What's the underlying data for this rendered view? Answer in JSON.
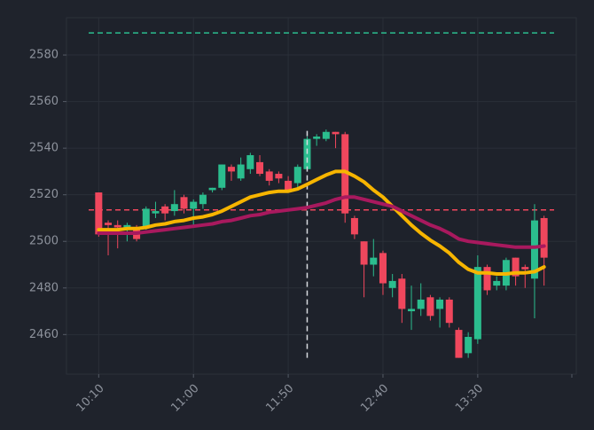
{
  "chart_data": {
    "type": "candlestick",
    "x": [
      "10:10",
      "10:15",
      "10:20",
      "10:25",
      "10:30",
      "10:35",
      "10:40",
      "10:45",
      "10:50",
      "10:55",
      "11:00",
      "11:05",
      "11:10",
      "11:15",
      "11:20",
      "11:25",
      "11:30",
      "11:35",
      "11:40",
      "11:45",
      "11:50",
      "11:55",
      "12:00",
      "12:05",
      "12:10",
      "12:15",
      "12:20",
      "12:25",
      "12:30",
      "12:35",
      "12:40",
      "12:45",
      "12:50",
      "12:55",
      "13:00",
      "13:05",
      "13:10",
      "13:15",
      "13:20",
      "13:25",
      "13:30",
      "13:35",
      "13:40",
      "13:45",
      "13:50",
      "13:55",
      "14:00",
      "14:05"
    ],
    "open": [
      2521,
      2508,
      2507,
      2506,
      2506,
      2506,
      2512,
      2515,
      2513,
      2519,
      2514,
      2516,
      2522,
      2523,
      2532,
      2527,
      2531,
      2534,
      2530,
      2529,
      2526,
      2525,
      2531,
      2544,
      2544,
      2547,
      2546,
      2510,
      2500,
      2490,
      2495,
      2480,
      2484,
      2470,
      2471,
      2476,
      2471,
      2475,
      2462,
      2452,
      2458,
      2489,
      2481,
      2481,
      2493,
      2489,
      2484,
      2510
    ],
    "high": [
      2521,
      2509,
      2509,
      2508,
      2507,
      2515,
      2517,
      2516,
      2522,
      2520,
      2518,
      2521,
      2523,
      2533,
      2533,
      2536,
      2538,
      2537,
      2531,
      2530,
      2528,
      2533,
      2545,
      2546,
      2548,
      2547,
      2547,
      2511,
      2500,
      2501,
      2496,
      2486,
      2486,
      2481,
      2482,
      2477,
      2476,
      2476,
      2463,
      2461,
      2494,
      2490,
      2485,
      2493,
      2493,
      2490,
      2516,
      2511
    ],
    "low": [
      2502,
      2494,
      2497,
      2500,
      2500,
      2505,
      2510,
      2509,
      2511,
      2512,
      2507,
      2514,
      2521,
      2522,
      2526,
      2526,
      2529,
      2528,
      2524,
      2525,
      2521,
      2523,
      2530,
      2541,
      2543,
      2540,
      2508,
      2501,
      2476,
      2485,
      2477,
      2476,
      2465,
      2462,
      2468,
      2466,
      2463,
      2463,
      2450,
      2450,
      2456,
      2477,
      2479,
      2479,
      2481,
      2480,
      2467,
      2481
    ],
    "close": [
      2503,
      2507,
      2506,
      2507,
      2501,
      2514,
      2513,
      2512,
      2516,
      2514,
      2517,
      2520,
      2523,
      2533,
      2530,
      2533,
      2537,
      2529,
      2526,
      2527,
      2522,
      2532,
      2544,
      2545,
      2547,
      2546,
      2512,
      2503,
      2490,
      2493,
      2482,
      2483,
      2471,
      2471,
      2475,
      2468,
      2475,
      2465,
      2450,
      2459,
      2489,
      2479,
      2483,
      2492,
      2485,
      2488,
      2509,
      2493
    ],
    "up_color": "#2bbd8e",
    "down_color": "#f0475d",
    "series": [
      {
        "color": "#f7b500",
        "values": [
          2505,
          2505,
          2505,
          2505.5,
          2505.5,
          2506,
          2507,
          2507.5,
          2508.5,
          2509,
          2510,
          2510.5,
          2511.5,
          2513,
          2515,
          2517,
          2519,
          2520,
          2521,
          2521.5,
          2521.5,
          2522.5,
          2524.5,
          2526.5,
          2528.5,
          2530,
          2530,
          2528,
          2525.5,
          2522,
          2519,
          2515,
          2511,
          2507,
          2503.5,
          2500.5,
          2498,
          2495,
          2491,
          2488,
          2486.5,
          2486.5,
          2486,
          2486,
          2486.5,
          2486.5,
          2487,
          2489
        ]
      },
      {
        "color": "#a8195e",
        "values": [
          2503.5,
          2503.5,
          2503.5,
          2503.5,
          2503.5,
          2504,
          2504.5,
          2505,
          2505.5,
          2506,
          2506.5,
          2507,
          2507.5,
          2508.5,
          2509,
          2510,
          2511,
          2511.5,
          2512.5,
          2513,
          2513.5,
          2514,
          2514.5,
          2515.5,
          2516.5,
          2518,
          2519,
          2519,
          2518,
          2517,
          2516,
          2515,
          2513,
          2511,
          2509,
          2507,
          2505.5,
          2503.5,
          2501,
          2500,
          2499.5,
          2499,
          2498.5,
          2498,
          2497.5,
          2497.5,
          2497.5,
          2498
        ]
      }
    ],
    "hlines": [
      {
        "value": 2589.5,
        "color": "#2bbd8e"
      },
      {
        "value": 2513.5,
        "color": "#f0475d"
      }
    ],
    "vline": {
      "x": "12:00",
      "from": 2450,
      "to": 2548,
      "color": "#d8dbe0"
    },
    "xlim": [
      "09:53",
      "14:22"
    ],
    "xticks": [
      "10:10",
      "11:00",
      "11:50",
      "12:40",
      "13:30"
    ],
    "ylim": [
      2443,
      2596
    ],
    "yticks": [
      2460,
      2480,
      2500,
      2520,
      2540,
      2560,
      2580
    ],
    "grid": true
  }
}
